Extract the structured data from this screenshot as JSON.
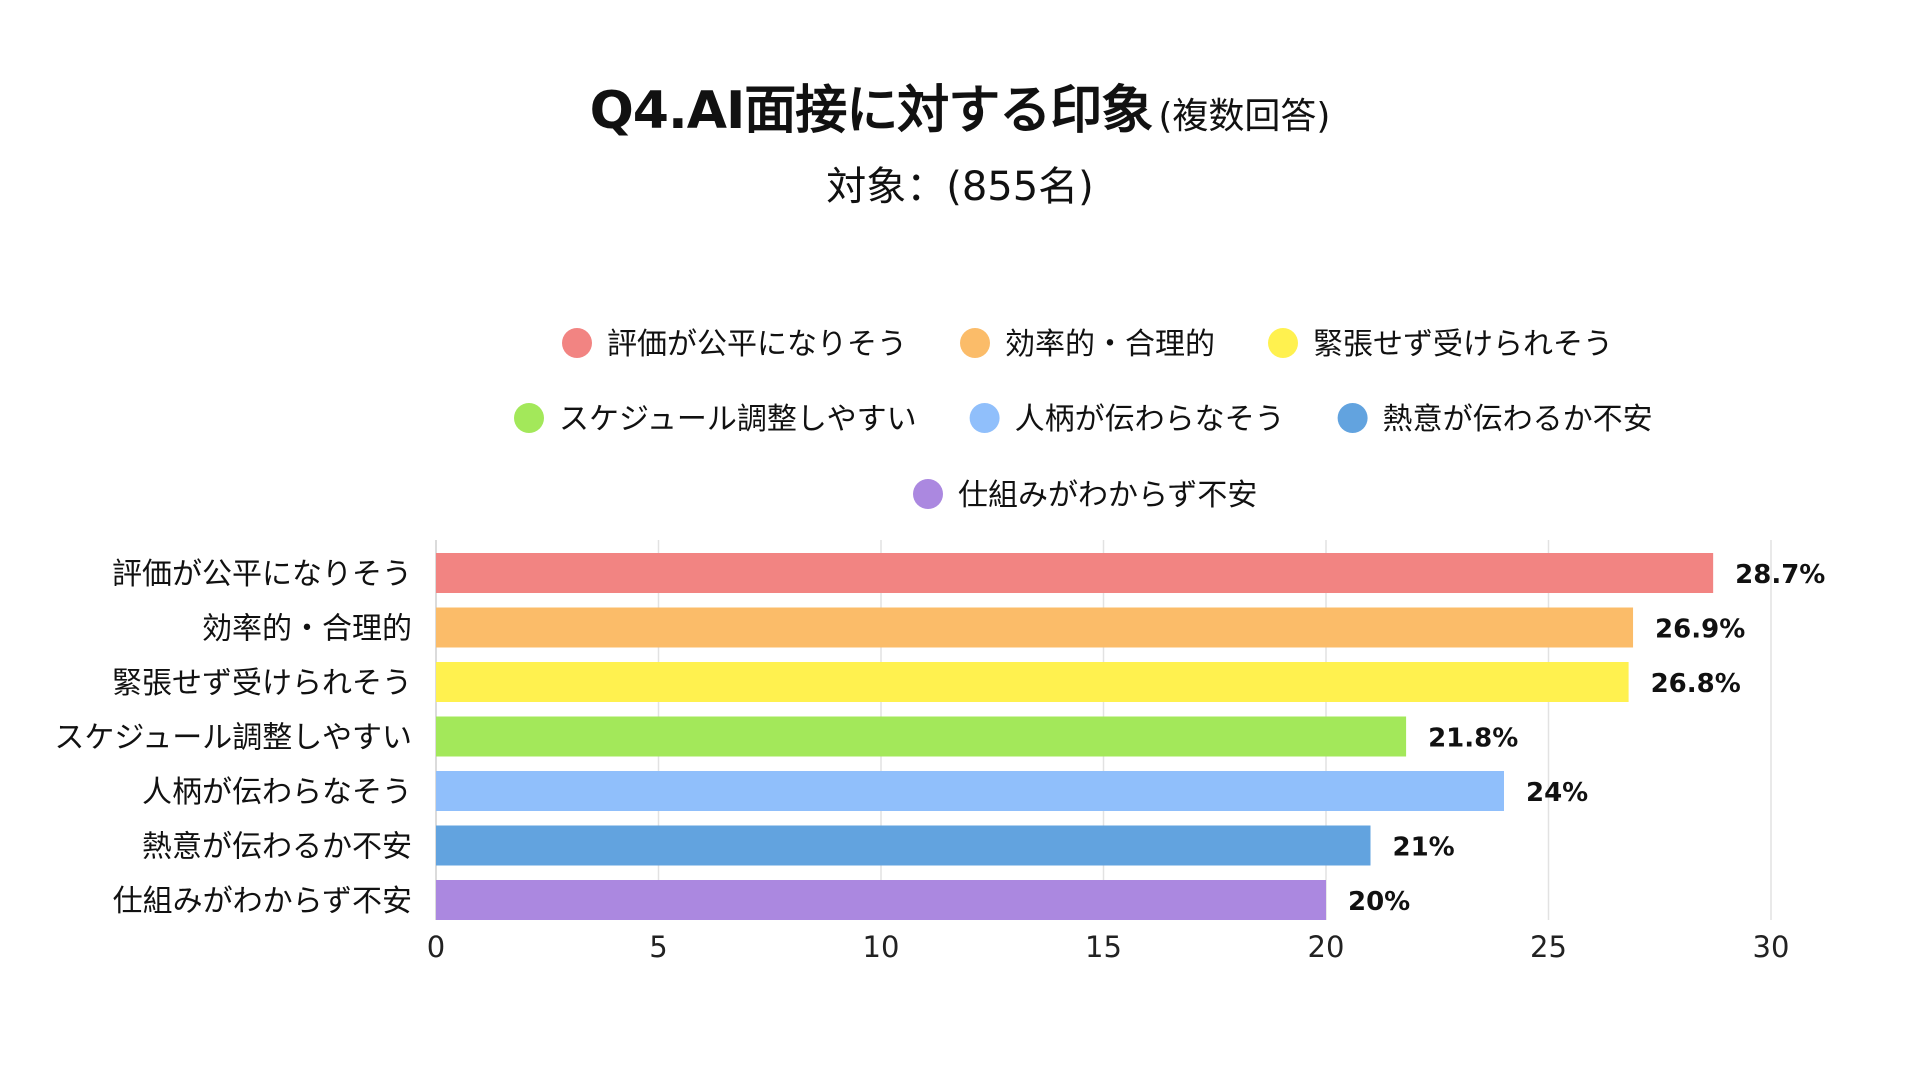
{
  "title": {
    "main": "Q4.AI面接に対する印象",
    "note": "(複数回答)",
    "subtitle": "対象：(855名)"
  },
  "chart_data": {
    "type": "bar",
    "orientation": "horizontal",
    "categories": [
      "評価が公平になりそう",
      "効率的・合理的",
      "緊張せず受けられそう",
      "スケジュール調整しやすい",
      "人柄が伝わらなそう",
      "熱意が伝わるか不安",
      "仕組みがわからず不安"
    ],
    "values": [
      28.7,
      26.9,
      26.8,
      21.8,
      24,
      21,
      20
    ],
    "value_labels": [
      "28.7%",
      "26.9%",
      "26.8%",
      "21.8%",
      "24%",
      "21%",
      "20%"
    ],
    "colors": [
      "#f28482",
      "#fbbc69",
      "#fff14f",
      "#a3e85a",
      "#90bffb",
      "#62a3df",
      "#ab88e0"
    ],
    "xlim": [
      0,
      30
    ],
    "xticks": [
      0,
      5,
      10,
      15,
      20,
      25,
      30
    ],
    "grid": true,
    "legend_position": "top-center",
    "legend_rows": [
      [
        0,
        1,
        2
      ],
      [
        3,
        4,
        5
      ],
      [
        6
      ]
    ]
  }
}
